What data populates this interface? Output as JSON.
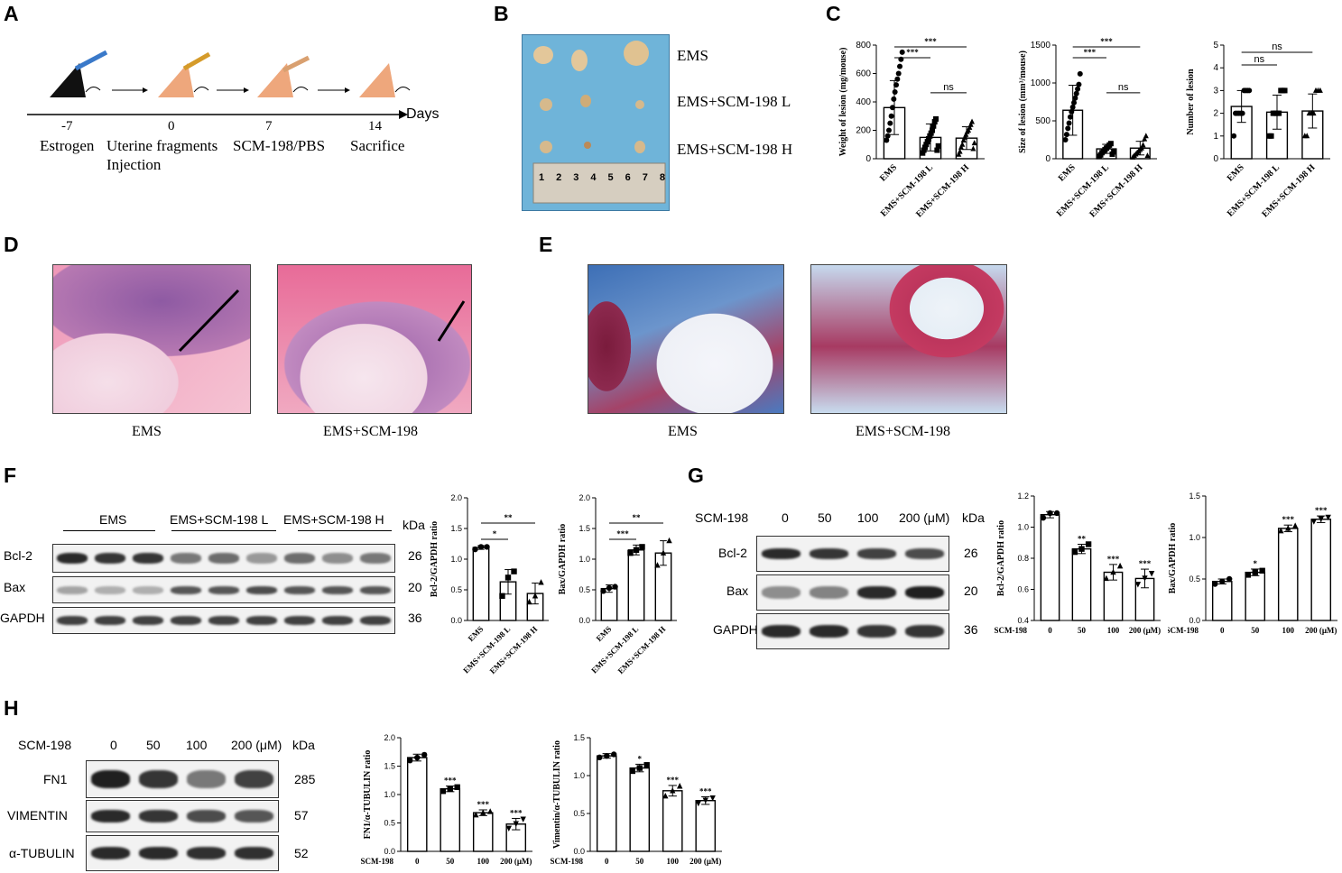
{
  "panels": {
    "A": "A",
    "B": "B",
    "C": "C",
    "D": "D",
    "E": "E",
    "F": "F",
    "G": "G",
    "H": "H"
  },
  "panel_a": {
    "ticks": [
      "-7",
      "0",
      "7",
      "14"
    ],
    "axis_label": "Days",
    "labels": [
      "Estrogen",
      "Uterine fragments",
      "Injection",
      "SCM-198/PBS",
      "Sacrifice"
    ]
  },
  "panel_b": {
    "groups": [
      "EMS",
      "EMS+SCM-198 L",
      "EMS+SCM-198 H"
    ],
    "ruler": [
      "1",
      "2",
      "3",
      "4",
      "5",
      "6",
      "7",
      "8"
    ]
  },
  "panel_d": {
    "captions": [
      "EMS",
      "EMS+SCM-198"
    ]
  },
  "panel_e": {
    "captions": [
      "EMS",
      "EMS+SCM-198"
    ]
  },
  "panel_f": {
    "groups": [
      "EMS",
      "EMS+SCM-198 L",
      "EMS+SCM-198 H"
    ],
    "kda": "kDa",
    "bands": [
      {
        "name": "Bcl-2",
        "kda": "26"
      },
      {
        "name": "Bax",
        "kda": "20"
      },
      {
        "name": "GAPDH",
        "kda": "36"
      }
    ]
  },
  "panel_g": {
    "treatment": "SCM-198",
    "doses": [
      "0",
      "50",
      "100",
      "200 (μM)"
    ],
    "kda": "kDa",
    "bands": [
      {
        "name": "Bcl-2",
        "kda": "26"
      },
      {
        "name": "Bax",
        "kda": "20"
      },
      {
        "name": "GAPDH",
        "kda": "36"
      }
    ]
  },
  "panel_h": {
    "treatment": "SCM-198",
    "doses": [
      "0",
      "50",
      "100",
      "200 (μM)"
    ],
    "kda": "kDa",
    "bands": [
      {
        "name": "FN1",
        "kda": "285"
      },
      {
        "name": "VIMENTIN",
        "kda": "57"
      },
      {
        "name": "α-TUBULIN",
        "kda": "52"
      }
    ]
  },
  "chart_data": [
    {
      "id": "c1",
      "type": "bar",
      "categories": [
        "EMS",
        "EMS+SCM-198 L",
        "EMS+SCM-198 H"
      ],
      "values": [
        360,
        150,
        145
      ],
      "errors": [
        190,
        95,
        80
      ],
      "points": [
        [
          130,
          160,
          200,
          250,
          300,
          360,
          420,
          470,
          520,
          560,
          600,
          650,
          700,
          750
        ],
        [
          40,
          60,
          80,
          100,
          120,
          140,
          160,
          180,
          200,
          230,
          260,
          280,
          60,
          90
        ],
        [
          30,
          50,
          80,
          100,
          130,
          150,
          170,
          190,
          200,
          220,
          240,
          260,
          70,
          110
        ]
      ],
      "marker": [
        "circle",
        "square",
        "triangle"
      ],
      "ylabel": "Weight of lesion (mg/mouse)",
      "ylim": [
        0,
        800
      ],
      "yticks": [
        "0",
        "200",
        "400",
        "600",
        "800"
      ],
      "sig": [
        {
          "text": "***",
          "from": 0,
          "to": 1
        },
        {
          "text": "***",
          "from": 0,
          "to": 2
        },
        {
          "text": "ns",
          "from": 1,
          "to": 2
        }
      ]
    },
    {
      "id": "c2",
      "type": "bar",
      "categories": [
        "EMS",
        "EMS+SCM-198 L",
        "EMS+SCM-198 H"
      ],
      "values": [
        640,
        130,
        140
      ],
      "errors": [
        330,
        60,
        90
      ],
      "points": [
        [
          250,
          320,
          400,
          470,
          550,
          620,
          680,
          740,
          800,
          860,
          920,
          980,
          1120
        ],
        [
          30,
          50,
          80,
          100,
          120,
          140,
          160,
          180,
          200,
          60,
          90
        ],
        [
          20,
          40,
          60,
          80,
          100,
          120,
          140,
          180,
          260,
          300,
          40
        ]
      ],
      "marker": [
        "circle",
        "square",
        "triangle"
      ],
      "ylabel": "Size of lesion (mm³/mouse)",
      "ylim": [
        0,
        1500
      ],
      "yticks": [
        "0",
        "500",
        "1000",
        "1500"
      ],
      "sig": [
        {
          "text": "***",
          "from": 0,
          "to": 1
        },
        {
          "text": "***",
          "from": 0,
          "to": 2
        },
        {
          "text": "ns",
          "from": 1,
          "to": 2
        }
      ]
    },
    {
      "id": "c3",
      "type": "bar",
      "categories": [
        "EMS",
        "EMS+SCM-198 L",
        "EMS+SCM-198 H"
      ],
      "values": [
        2.3,
        2.05,
        2.1
      ],
      "errors": [
        0.7,
        0.75,
        0.75
      ],
      "points": [
        [
          1,
          2,
          2,
          2,
          2,
          2,
          3,
          3,
          3,
          3
        ],
        [
          1,
          1,
          2,
          2,
          2,
          2,
          3,
          3,
          3
        ],
        [
          1,
          1,
          2,
          2,
          2,
          3,
          3,
          3
        ]
      ],
      "marker": [
        "circle",
        "square",
        "triangle"
      ],
      "ylabel": "Number of lesion",
      "ylim": [
        0,
        5
      ],
      "yticks": [
        "0",
        "1",
        "2",
        "3",
        "4",
        "5"
      ],
      "sig": [
        {
          "text": "ns",
          "from": 0,
          "to": 1
        },
        {
          "text": "ns",
          "from": 0,
          "to": 2
        }
      ]
    },
    {
      "id": "f1",
      "type": "bar",
      "categories": [
        "EMS",
        "EMS+SCM-198 L",
        "EMS+SCM-198 H"
      ],
      "values": [
        1.19,
        0.63,
        0.44
      ],
      "errors": [
        0.03,
        0.2,
        0.17
      ],
      "points": [
        [
          1.16,
          1.2,
          1.2
        ],
        [
          0.4,
          0.7,
          0.8
        ],
        [
          0.3,
          0.4,
          0.62
        ]
      ],
      "marker": [
        "circle",
        "square",
        "triangle"
      ],
      "ylabel": "Bcl-2/GAPDH ratio",
      "ylim": [
        0,
        2.0
      ],
      "yticks": [
        "0.0",
        "0.5",
        "1.0",
        "1.5",
        "2.0"
      ],
      "sig": [
        {
          "text": "*",
          "from": 0,
          "to": 1
        },
        {
          "text": "**",
          "from": 0,
          "to": 2
        }
      ]
    },
    {
      "id": "f2",
      "type": "bar",
      "categories": [
        "EMS",
        "EMS+SCM-198 L",
        "EMS+SCM-198 H"
      ],
      "values": [
        0.52,
        1.15,
        1.1
      ],
      "errors": [
        0.06,
        0.08,
        0.2
      ],
      "points": [
        [
          0.48,
          0.53,
          0.55
        ],
        [
          1.1,
          1.15,
          1.2
        ],
        [
          0.9,
          1.1,
          1.3
        ]
      ],
      "marker": [
        "circle",
        "square",
        "triangle"
      ],
      "ylabel": "Bax/GAPDH ratio",
      "ylim": [
        0,
        2.0
      ],
      "yticks": [
        "0.0",
        "0.5",
        "1.0",
        "1.5",
        "2.0"
      ],
      "sig": [
        {
          "text": "***",
          "from": 0,
          "to": 1
        },
        {
          "text": "**",
          "from": 0,
          "to": 2
        }
      ]
    },
    {
      "id": "g1",
      "type": "bar",
      "categories": [
        "0",
        "50",
        "100",
        "200 (μM)"
      ],
      "values": [
        1.08,
        0.86,
        0.71,
        0.67
      ],
      "errors": [
        0.02,
        0.03,
        0.05,
        0.06
      ],
      "points": [
        [
          1.06,
          1.09,
          1.09
        ],
        [
          0.84,
          0.86,
          0.89
        ],
        [
          0.67,
          0.71,
          0.75
        ],
        [
          0.63,
          0.67,
          0.7
        ]
      ],
      "marker": [
        "circle",
        "square",
        "triangle",
        "inverted-triangle"
      ],
      "xlabel": "SCM-198",
      "ylabel": "Bcl-2/GAPDH ratio",
      "ylim": [
        0.4,
        1.2
      ],
      "yticks": [
        "0.4",
        "0.6",
        "0.8",
        "1.0",
        "1.2"
      ],
      "stars": [
        "",
        "**",
        "***",
        "***"
      ]
    },
    {
      "id": "g2",
      "type": "bar",
      "categories": [
        "0",
        "50",
        "100",
        "200 (μM)"
      ],
      "values": [
        0.47,
        0.58,
        1.11,
        1.22
      ],
      "errors": [
        0.03,
        0.04,
        0.04,
        0.04
      ],
      "points": [
        [
          0.44,
          0.47,
          0.5
        ],
        [
          0.55,
          0.58,
          0.6
        ],
        [
          1.08,
          1.11,
          1.14
        ],
        [
          1.19,
          1.22,
          1.24
        ]
      ],
      "marker": [
        "circle",
        "square",
        "triangle",
        "inverted-triangle"
      ],
      "xlabel": "SCM-198",
      "ylabel": "Bax/GAPDH ratio",
      "ylim": [
        0,
        1.5
      ],
      "yticks": [
        "0.0",
        "0.5",
        "1.0",
        "1.5"
      ],
      "stars": [
        "",
        "*",
        "***",
        "***"
      ]
    },
    {
      "id": "h1",
      "type": "bar",
      "categories": [
        "0",
        "50",
        "100",
        "200 (μM)"
      ],
      "values": [
        1.65,
        1.1,
        0.68,
        0.48
      ],
      "errors": [
        0.06,
        0.05,
        0.05,
        0.1
      ],
      "points": [
        [
          1.6,
          1.65,
          1.7
        ],
        [
          1.06,
          1.1,
          1.13
        ],
        [
          0.64,
          0.68,
          0.7
        ],
        [
          0.4,
          0.48,
          0.56
        ]
      ],
      "marker": [
        "circle",
        "square",
        "triangle",
        "inverted-triangle"
      ],
      "xlabel": "SCM-198",
      "ylabel": "FN1/α-TUBULIN ratio",
      "ylim": [
        0,
        2.0
      ],
      "yticks": [
        "0.0",
        "0.5",
        "1.0",
        "1.5",
        "2.0"
      ],
      "stars": [
        "",
        "***",
        "***",
        "***"
      ]
    },
    {
      "id": "h2",
      "type": "bar",
      "categories": [
        "0",
        "50",
        "100",
        "200 (μM)"
      ],
      "values": [
        1.26,
        1.1,
        0.8,
        0.67
      ],
      "errors": [
        0.03,
        0.05,
        0.07,
        0.05
      ],
      "points": [
        [
          1.24,
          1.26,
          1.28
        ],
        [
          1.06,
          1.1,
          1.14
        ],
        [
          0.73,
          0.8,
          0.86
        ],
        [
          0.63,
          0.67,
          0.7
        ]
      ],
      "marker": [
        "circle",
        "square",
        "triangle",
        "inverted-triangle"
      ],
      "xlabel": "SCM-198",
      "ylabel": "Vimentin/α-TUBULIN ratio",
      "ylim": [
        0,
        1.5
      ],
      "yticks": [
        "0.0",
        "0.5",
        "1.0",
        "1.5"
      ],
      "stars": [
        "",
        "*",
        "***",
        "***"
      ]
    }
  ]
}
